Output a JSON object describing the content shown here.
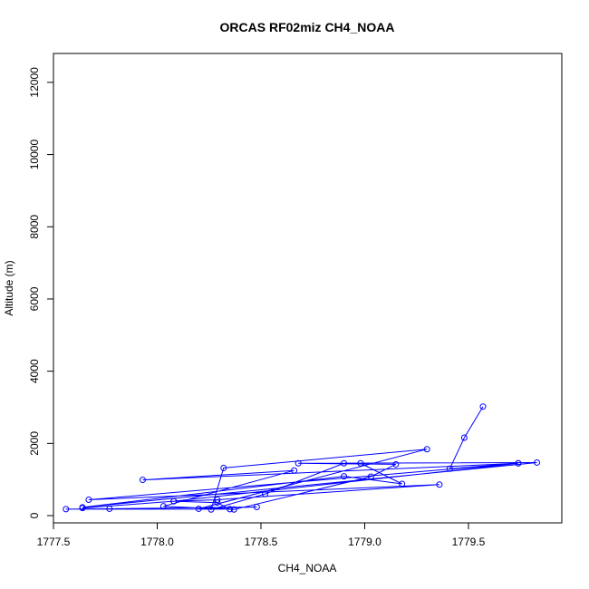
{
  "chart_data": {
    "type": "line",
    "title": "ORCAS RF02miz CH4_NOAA",
    "xlabel": "CH4_NOAA",
    "ylabel": "Altitude (m)",
    "xlim": [
      1777.5,
      1779.95
    ],
    "ylim": [
      -200,
      12800
    ],
    "xticks": [
      1777.5,
      1778.0,
      1778.5,
      1779.0,
      1779.5
    ],
    "xtick_labels": [
      "1777.5",
      "1778.0",
      "1778.5",
      "1779.0",
      "1779.5"
    ],
    "yticks": [
      0,
      2000,
      4000,
      6000,
      8000,
      10000,
      12000
    ],
    "ytick_labels": [
      "0",
      "2000",
      "4000",
      "6000",
      "8000",
      "10000",
      "12000"
    ],
    "grid": false,
    "line_color": "#0000ff",
    "marker": "open-circle",
    "series": [
      {
        "x": [
          1779.57,
          1779.48,
          1779.41,
          1779.74,
          1778.08,
          1778.29,
          1779.36,
          1777.67,
          1779.74,
          1777.93,
          1778.66,
          1778.03,
          1778.37,
          1779.03,
          1779.15,
          1778.68,
          1779.83,
          1777.64,
          1778.9,
          1779.18,
          1778.98,
          1778.9,
          1778.52,
          1778.26,
          1778.32,
          1779.3,
          1778.2,
          1778.48,
          1777.77,
          1777.56,
          1778.35,
          1778.29,
          1778.08,
          1777.64
        ],
        "y": [
          3020,
          2160,
          1300,
          1450,
          400,
          440,
          860,
          440,
          1450,
          990,
          1250,
          260,
          170,
          1080,
          1420,
          1450,
          1470,
          230,
          1090,
          880,
          1450,
          1450,
          600,
          170,
          1320,
          1840,
          190,
          240,
          190,
          180,
          180,
          360,
          400,
          210
        ]
      }
    ]
  }
}
